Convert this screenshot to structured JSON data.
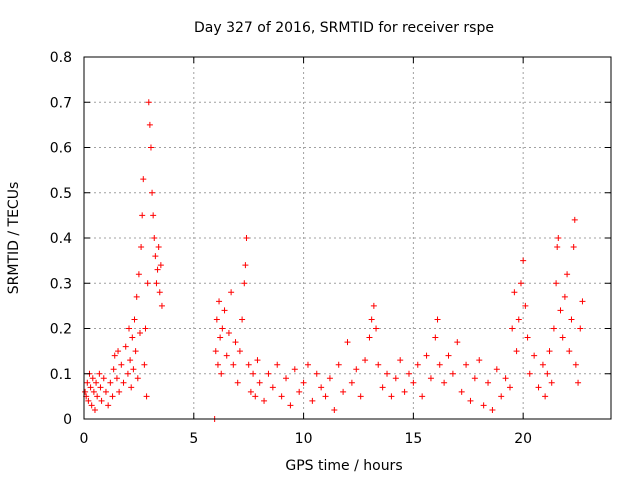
{
  "chart_data": {
    "type": "scatter",
    "title": "Day 327 of 2016, SRMTID for receiver rspe",
    "xlabel": "GPS time / hours",
    "ylabel": "SRMTID / TECUs",
    "xlim": [
      0,
      24
    ],
    "ylim": [
      0,
      0.8
    ],
    "xticks": [
      "0",
      "5",
      "10",
      "15",
      "20"
    ],
    "yticks": [
      "0",
      "0.1",
      "0.2",
      "0.3",
      "0.4",
      "0.5",
      "0.6",
      "0.7",
      "0.8"
    ],
    "grid": true,
    "marker": "plus",
    "colors": {
      "series": "#ff0000",
      "grid": "#a0a0a0",
      "axis": "#000000"
    },
    "series": [
      {
        "name": "SRMTID",
        "points": [
          [
            0.05,
            0.06
          ],
          [
            0.1,
            0.05
          ],
          [
            0.15,
            0.08
          ],
          [
            0.2,
            0.04
          ],
          [
            0.25,
            0.1
          ],
          [
            0.3,
            0.07
          ],
          [
            0.35,
            0.03
          ],
          [
            0.4,
            0.09
          ],
          [
            0.45,
            0.06
          ],
          [
            0.5,
            0.02
          ],
          [
            0.55,
            0.08
          ],
          [
            0.6,
            0.05
          ],
          [
            0.7,
            0.1
          ],
          [
            0.75,
            0.07
          ],
          [
            0.8,
            0.04
          ],
          [
            0.9,
            0.09
          ],
          [
            1.0,
            0.06
          ],
          [
            1.1,
            0.03
          ],
          [
            1.2,
            0.08
          ],
          [
            1.3,
            0.05
          ],
          [
            1.35,
            0.11
          ],
          [
            1.4,
            0.14
          ],
          [
            1.5,
            0.09
          ],
          [
            1.55,
            0.15
          ],
          [
            1.6,
            0.06
          ],
          [
            1.7,
            0.12
          ],
          [
            1.8,
            0.08
          ],
          [
            1.9,
            0.16
          ],
          [
            2.0,
            0.1
          ],
          [
            2.05,
            0.2
          ],
          [
            2.1,
            0.13
          ],
          [
            2.15,
            0.07
          ],
          [
            2.2,
            0.18
          ],
          [
            2.25,
            0.11
          ],
          [
            2.3,
            0.22
          ],
          [
            2.35,
            0.15
          ],
          [
            2.4,
            0.27
          ],
          [
            2.45,
            0.09
          ],
          [
            2.5,
            0.32
          ],
          [
            2.55,
            0.19
          ],
          [
            2.6,
            0.38
          ],
          [
            2.65,
            0.45
          ],
          [
            2.7,
            0.53
          ],
          [
            2.75,
            0.12
          ],
          [
            2.8,
            0.2
          ],
          [
            2.85,
            0.05
          ],
          [
            2.9,
            0.3
          ],
          [
            2.95,
            0.7
          ],
          [
            3.0,
            0.65
          ],
          [
            3.05,
            0.6
          ],
          [
            3.1,
            0.5
          ],
          [
            3.15,
            0.45
          ],
          [
            3.2,
            0.4
          ],
          [
            3.25,
            0.36
          ],
          [
            3.3,
            0.3
          ],
          [
            3.35,
            0.33
          ],
          [
            3.4,
            0.38
          ],
          [
            3.45,
            0.28
          ],
          [
            3.5,
            0.34
          ],
          [
            3.55,
            0.25
          ],
          [
            5.95,
            0.0
          ],
          [
            6.0,
            0.15
          ],
          [
            6.05,
            0.22
          ],
          [
            6.1,
            0.12
          ],
          [
            6.15,
            0.26
          ],
          [
            6.2,
            0.18
          ],
          [
            6.25,
            0.1
          ],
          [
            6.3,
            0.2
          ],
          [
            6.4,
            0.24
          ],
          [
            6.5,
            0.14
          ],
          [
            6.6,
            0.19
          ],
          [
            6.7,
            0.28
          ],
          [
            6.8,
            0.12
          ],
          [
            6.9,
            0.17
          ],
          [
            7.0,
            0.08
          ],
          [
            7.1,
            0.15
          ],
          [
            7.2,
            0.22
          ],
          [
            7.3,
            0.3
          ],
          [
            7.35,
            0.34
          ],
          [
            7.4,
            0.4
          ],
          [
            7.5,
            0.12
          ],
          [
            7.6,
            0.06
          ],
          [
            7.7,
            0.1
          ],
          [
            7.8,
            0.05
          ],
          [
            7.9,
            0.13
          ],
          [
            8.0,
            0.08
          ],
          [
            8.2,
            0.04
          ],
          [
            8.4,
            0.1
          ],
          [
            8.6,
            0.07
          ],
          [
            8.8,
            0.12
          ],
          [
            9.0,
            0.05
          ],
          [
            9.2,
            0.09
          ],
          [
            9.4,
            0.03
          ],
          [
            9.6,
            0.11
          ],
          [
            9.8,
            0.06
          ],
          [
            10.0,
            0.08
          ],
          [
            10.2,
            0.12
          ],
          [
            10.4,
            0.04
          ],
          [
            10.6,
            0.1
          ],
          [
            10.8,
            0.07
          ],
          [
            11.0,
            0.05
          ],
          [
            11.2,
            0.09
          ],
          [
            11.4,
            0.02
          ],
          [
            11.6,
            0.12
          ],
          [
            11.8,
            0.06
          ],
          [
            12.0,
            0.17
          ],
          [
            12.2,
            0.08
          ],
          [
            12.4,
            0.11
          ],
          [
            12.6,
            0.05
          ],
          [
            12.8,
            0.13
          ],
          [
            13.0,
            0.18
          ],
          [
            13.1,
            0.22
          ],
          [
            13.2,
            0.25
          ],
          [
            13.3,
            0.2
          ],
          [
            13.4,
            0.12
          ],
          [
            13.6,
            0.07
          ],
          [
            13.8,
            0.1
          ],
          [
            14.0,
            0.05
          ],
          [
            14.2,
            0.09
          ],
          [
            14.4,
            0.13
          ],
          [
            14.6,
            0.06
          ],
          [
            14.8,
            0.1
          ],
          [
            15.0,
            0.08
          ],
          [
            15.2,
            0.12
          ],
          [
            15.4,
            0.05
          ],
          [
            15.6,
            0.14
          ],
          [
            15.8,
            0.09
          ],
          [
            16.0,
            0.18
          ],
          [
            16.1,
            0.22
          ],
          [
            16.2,
            0.12
          ],
          [
            16.4,
            0.08
          ],
          [
            16.6,
            0.14
          ],
          [
            16.8,
            0.1
          ],
          [
            17.0,
            0.17
          ],
          [
            17.2,
            0.06
          ],
          [
            17.4,
            0.12
          ],
          [
            17.6,
            0.04
          ],
          [
            17.8,
            0.09
          ],
          [
            18.0,
            0.13
          ],
          [
            18.2,
            0.03
          ],
          [
            18.4,
            0.08
          ],
          [
            18.6,
            0.02
          ],
          [
            18.8,
            0.11
          ],
          [
            19.0,
            0.05
          ],
          [
            19.2,
            0.09
          ],
          [
            19.4,
            0.07
          ],
          [
            19.5,
            0.2
          ],
          [
            19.6,
            0.28
          ],
          [
            19.7,
            0.15
          ],
          [
            19.8,
            0.22
          ],
          [
            19.9,
            0.3
          ],
          [
            20.0,
            0.35
          ],
          [
            20.1,
            0.25
          ],
          [
            20.2,
            0.18
          ],
          [
            20.3,
            0.1
          ],
          [
            20.5,
            0.14
          ],
          [
            20.7,
            0.07
          ],
          [
            20.9,
            0.12
          ],
          [
            21.0,
            0.05
          ],
          [
            21.1,
            0.1
          ],
          [
            21.2,
            0.15
          ],
          [
            21.3,
            0.08
          ],
          [
            21.4,
            0.2
          ],
          [
            21.5,
            0.3
          ],
          [
            21.55,
            0.38
          ],
          [
            21.6,
            0.4
          ],
          [
            21.7,
            0.24
          ],
          [
            21.8,
            0.18
          ],
          [
            21.9,
            0.27
          ],
          [
            22.0,
            0.32
          ],
          [
            22.1,
            0.15
          ],
          [
            22.2,
            0.22
          ],
          [
            22.3,
            0.38
          ],
          [
            22.35,
            0.44
          ],
          [
            22.4,
            0.12
          ],
          [
            22.5,
            0.08
          ],
          [
            22.6,
            0.2
          ],
          [
            22.7,
            0.26
          ]
        ]
      }
    ]
  }
}
